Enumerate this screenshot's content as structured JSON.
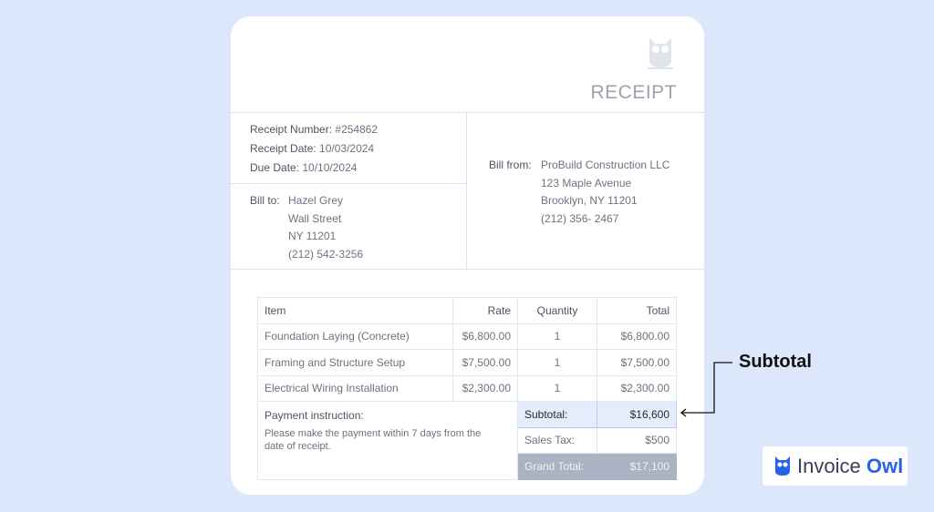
{
  "receipt": {
    "title": "RECEIPT",
    "number_label": "Receipt Number:",
    "number": "#254862",
    "date_label": "Receipt Date:",
    "date": "10/03/2024",
    "due_label": "Due Date:",
    "due": "10/10/2024",
    "bill_to_label": "Bill to:",
    "bill_to": [
      "Hazel Grey",
      "Wall Street",
      "NY 11201",
      "(212) 542-3256"
    ],
    "bill_from_label": "Bill from:",
    "bill_from": [
      "ProBuild Construction LLC",
      "123 Maple Avenue",
      "Brooklyn, NY 11201",
      "(212) 356- 2467"
    ]
  },
  "table": {
    "headers": [
      "Item",
      "Rate",
      "Quantity",
      "Total"
    ],
    "rows": [
      [
        "Foundation Laying (Concrete)",
        "$6,800.00",
        "1",
        "$6,800.00"
      ],
      [
        "Framing and Structure Setup",
        "$7,500.00",
        "1",
        "$7,500.00"
      ],
      [
        "Electrical Wiring Installation",
        "$2,300.00",
        "1",
        "$2,300.00"
      ]
    ],
    "payment_title": "Payment instruction:",
    "payment_text": "Please make the payment within 7 days from the date of receipt.",
    "subtotal_label": "Subtotal:",
    "subtotal": "$16,600",
    "tax_label": "Sales Tax:",
    "tax": "$500",
    "grand_label": "Grand Total:",
    "grand": "$17,100"
  },
  "annotation": "Subtotal",
  "brand": {
    "name_a": "Invoice",
    "name_b": "Owl",
    "accent": "#2563eb"
  }
}
